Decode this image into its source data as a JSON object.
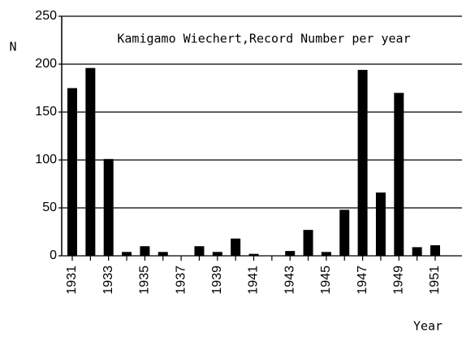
{
  "chart_data": {
    "type": "bar",
    "title": "Kamigamo Wiechert,Record Number per year",
    "y_label": "N",
    "x_label": "Year",
    "categories": [
      "1931",
      null,
      "1933",
      null,
      "1935",
      null,
      "1937",
      null,
      "1939",
      null,
      "1941",
      null,
      "1943",
      null,
      "1945",
      null,
      "1947",
      null,
      "1949",
      null,
      "1951"
    ],
    "values": [
      175,
      196,
      101,
      4,
      10,
      4,
      0,
      10,
      4,
      18,
      2,
      0,
      5,
      27,
      4,
      48,
      194,
      66,
      170,
      9,
      11
    ],
    "color": "#000000",
    "ylim": [
      0,
      250
    ],
    "yticks": [
      0,
      50,
      100,
      150,
      200,
      250
    ],
    "grid": true
  }
}
